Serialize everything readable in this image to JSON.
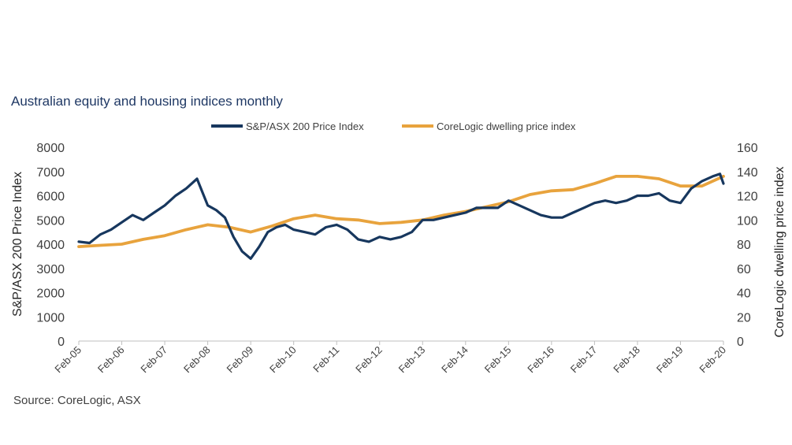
{
  "chart_data": {
    "type": "line",
    "title": "Australian equity and housing indices monthly",
    "source": "Source: CoreLogic, ASX",
    "xlabel": "",
    "x_ticks": [
      "Feb-05",
      "Feb-06",
      "Feb-07",
      "Feb-08",
      "Feb-09",
      "Feb-10",
      "Feb-11",
      "Feb-12",
      "Feb-13",
      "Feb-14",
      "Feb-15",
      "Feb-16",
      "Feb-17",
      "Feb-18",
      "Feb-19",
      "Feb-20"
    ],
    "x_range": [
      2005.0,
      2020.0
    ],
    "y_left": {
      "label": "S&P/ASX 200 Price Index",
      "range": [
        0,
        8000
      ],
      "ticks": [
        "0",
        "1000",
        "2000",
        "3000",
        "4000",
        "5000",
        "6000",
        "7000",
        "8000"
      ]
    },
    "y_right": {
      "label": "CoreLogic dwelling price index",
      "range": [
        0,
        160
      ],
      "ticks": [
        "0",
        "20",
        "40",
        "60",
        "80",
        "100",
        "120",
        "140",
        "160"
      ]
    },
    "legend_position": "top-center",
    "grid": false,
    "series": [
      {
        "name": "S&P/ASX 200 Price Index",
        "axis": "left",
        "color": "#17375e",
        "x": [
          2005.0,
          2005.25,
          2005.5,
          2005.75,
          2006.0,
          2006.25,
          2006.5,
          2006.75,
          2007.0,
          2007.25,
          2007.5,
          2007.75,
          2008.0,
          2008.2,
          2008.4,
          2008.6,
          2008.8,
          2009.0,
          2009.2,
          2009.4,
          2009.6,
          2009.8,
          2010.0,
          2010.25,
          2010.5,
          2010.75,
          2011.0,
          2011.25,
          2011.5,
          2011.75,
          2012.0,
          2012.25,
          2012.5,
          2012.75,
          2013.0,
          2013.25,
          2013.5,
          2013.75,
          2014.0,
          2014.25,
          2014.5,
          2014.75,
          2015.0,
          2015.25,
          2015.5,
          2015.75,
          2016.0,
          2016.25,
          2016.5,
          2016.75,
          2017.0,
          2017.25,
          2017.5,
          2017.75,
          2018.0,
          2018.25,
          2018.5,
          2018.75,
          2019.0,
          2019.25,
          2019.5,
          2019.75,
          2019.92,
          2020.0
        ],
        "values": [
          4100,
          4050,
          4400,
          4600,
          4900,
          5200,
          5000,
          5300,
          5600,
          6000,
          6300,
          6700,
          5600,
          5400,
          5100,
          4300,
          3700,
          3400,
          3900,
          4500,
          4700,
          4800,
          4600,
          4500,
          4400,
          4700,
          4800,
          4600,
          4200,
          4100,
          4300,
          4200,
          4300,
          4500,
          5000,
          5000,
          5100,
          5200,
          5300,
          5500,
          5500,
          5500,
          5800,
          5600,
          5400,
          5200,
          5100,
          5100,
          5300,
          5500,
          5700,
          5800,
          5700,
          5800,
          6000,
          6000,
          6100,
          5800,
          5700,
          6300,
          6600,
          6800,
          6900,
          6500
        ]
      },
      {
        "name": "CoreLogic dwelling price index",
        "axis": "right",
        "color": "#e8a33d",
        "x": [
          2005.0,
          2005.5,
          2006.0,
          2006.5,
          2007.0,
          2007.5,
          2008.0,
          2008.5,
          2009.0,
          2009.5,
          2010.0,
          2010.5,
          2011.0,
          2011.5,
          2012.0,
          2012.5,
          2013.0,
          2013.5,
          2014.0,
          2014.5,
          2015.0,
          2015.5,
          2016.0,
          2016.5,
          2017.0,
          2017.5,
          2018.0,
          2018.5,
          2019.0,
          2019.5,
          2020.0
        ],
        "values": [
          78,
          79,
          80,
          84,
          87,
          92,
          96,
          94,
          90,
          95,
          101,
          104,
          101,
          100,
          97,
          98,
          100,
          104,
          107,
          111,
          115,
          121,
          124,
          125,
          130,
          136,
          136,
          134,
          128,
          128,
          136
        ]
      }
    ]
  }
}
